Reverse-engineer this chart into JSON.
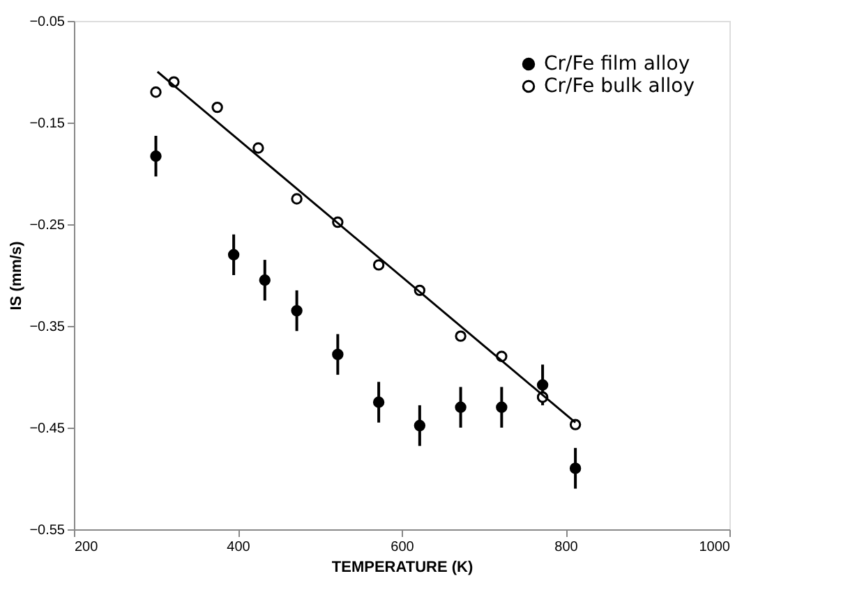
{
  "chart_data": {
    "type": "scatter",
    "xlabel": "TEMPERATURE (K)",
    "ylabel": "IS (mm/s)",
    "xlim": [
      200,
      1000
    ],
    "xticks": [
      200,
      400,
      600,
      800,
      1000
    ],
    "ylim": [
      -0.55,
      -0.05
    ],
    "yticks": [
      -0.55,
      -0.45,
      -0.35,
      -0.25,
      -0.15,
      -0.05
    ],
    "grid": false,
    "legend": "top right",
    "series": [
      {
        "name": "Cr/Fe film alloy",
        "marker": "circle",
        "color": "#000000",
        "x": [
          300,
          395,
          433,
          472,
          522,
          572,
          622,
          672,
          722,
          772,
          772,
          812
        ],
        "values": [
          -0.183,
          -0.28,
          -0.305,
          -0.335,
          -0.378,
          -0.425,
          -0.448,
          -0.43,
          -0.43,
          -0.408,
          -0.42,
          -0.49
        ],
        "errors": [
          0.02,
          0.02,
          0.02,
          0.02,
          0.02,
          0.02,
          0.02,
          0.02,
          0.02,
          0.02,
          null,
          0.02
        ]
      },
      {
        "name": "Cr/Fe bulk alloy",
        "marker": "circle",
        "color": "#000000",
        "x": [
          300,
          322,
          375,
          425,
          472,
          522,
          572,
          622,
          672,
          722,
          772,
          812
        ],
        "values": [
          -0.12,
          -0.11,
          -0.135,
          -0.175,
          -0.225,
          -0.248,
          -0.29,
          -0.315,
          -0.36,
          -0.38,
          -0.42,
          -0.447
        ]
      },
      {
        "type": "line",
        "marker": "none",
        "color": "#000000",
        "x": [
          302,
          812
        ],
        "values": [
          -0.1,
          -0.445
        ]
      }
    ]
  }
}
